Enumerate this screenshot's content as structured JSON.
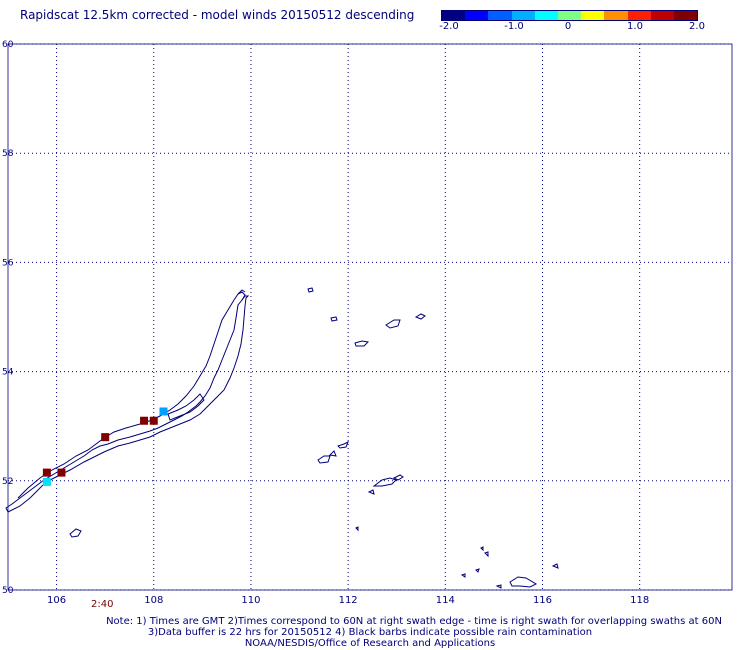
{
  "title": "Rapidscat 12.5km corrected - model winds 20150512 descending",
  "colorbar": {
    "ticks": [
      "-2.0",
      "-1.0",
      "0",
      "1.0",
      "2.0"
    ],
    "tick_values": [
      -2.0,
      -1.0,
      0,
      1.0,
      2.0
    ],
    "colors": [
      "#000080",
      "#0000ff",
      "#0060ff",
      "#00b0ff",
      "#00ffff",
      "#80ff80",
      "#ffff00",
      "#ff9000",
      "#ff2000",
      "#c00000",
      "#800000"
    ]
  },
  "map": {
    "lon_ticks": [
      "106",
      "108",
      "110",
      "112",
      "114",
      "116",
      "118"
    ],
    "lat_ticks": [
      "50",
      "52",
      "54",
      "56",
      "58",
      "60"
    ],
    "lon_values": [
      106,
      108,
      110,
      112,
      114,
      116,
      118
    ],
    "lat_values": [
      50,
      52,
      54,
      56,
      58,
      60
    ],
    "coast_color": "#00007a",
    "grid": true
  },
  "wind_cells": [
    {
      "lon": 105.8,
      "lat": 52.15,
      "value": 2.0,
      "color": "#800000"
    },
    {
      "lon": 106.1,
      "lat": 52.15,
      "value": 2.0,
      "color": "#800000"
    },
    {
      "lon": 105.8,
      "lat": 51.98,
      "value": -0.8,
      "color": "#00e0ff"
    },
    {
      "lon": 107.0,
      "lat": 52.8,
      "value": 2.0,
      "color": "#800000"
    },
    {
      "lon": 107.8,
      "lat": 53.1,
      "value": 2.0,
      "color": "#800000"
    },
    {
      "lon": 108.0,
      "lat": 53.1,
      "value": 2.0,
      "color": "#800000"
    },
    {
      "lon": 108.2,
      "lat": 53.27,
      "value": -1.2,
      "color": "#00a0ff"
    }
  ],
  "time_mark": "2:40",
  "footer": {
    "line1": "Note: 1) Times are GMT 2)Times correspond to 60N at right swath edge - time is right swath for overlapping swaths at 60N",
    "line2": "3)Data buffer is 22 hrs for 20150512 4) Black barbs indicate possible rain contamination",
    "line3": "NOAA/NESDIS/Office of Research and Applications"
  }
}
